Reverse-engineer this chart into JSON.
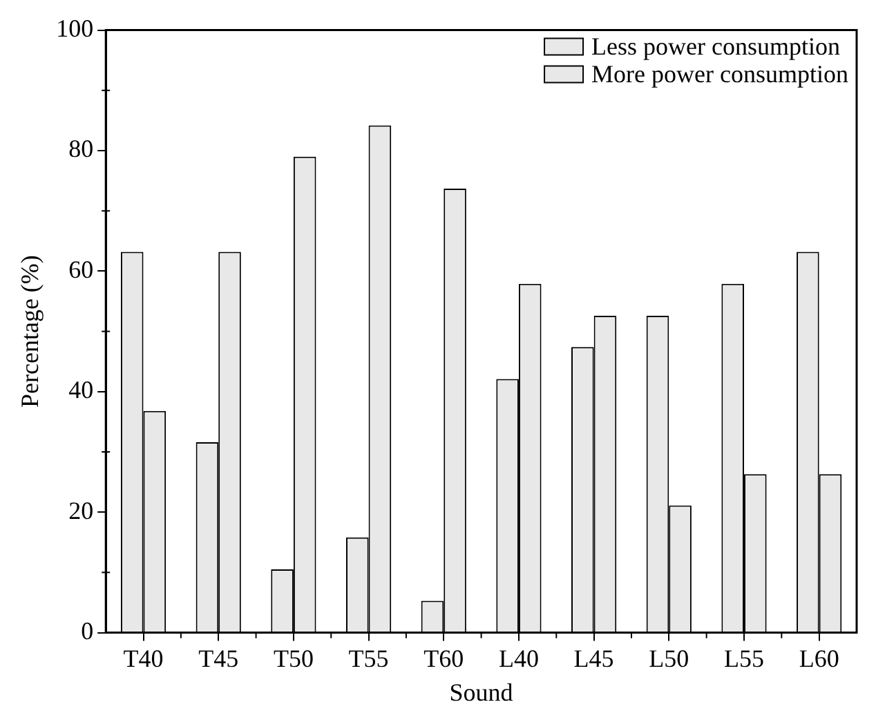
{
  "chart_data": {
    "type": "bar",
    "xlabel": "Sound",
    "ylabel": "Percentage (%)",
    "categories": [
      "T40",
      "T45",
      "T50",
      "T55",
      "T60",
      "L40",
      "L45",
      "L50",
      "L55",
      "L60"
    ],
    "series": [
      {
        "name": "Less power consumption",
        "color": "#e8e8e8",
        "values": [
          63.2,
          31.6,
          10.5,
          15.8,
          5.3,
          42.1,
          47.4,
          52.6,
          57.9,
          63.2
        ]
      },
      {
        "name": "More power consumption",
        "color": "#e8e8e8",
        "values": [
          36.8,
          63.2,
          79.0,
          84.2,
          73.7,
          57.9,
          52.6,
          21.1,
          26.3,
          26.3
        ]
      }
    ],
    "ylim": [
      0,
      100
    ],
    "yticks": [
      0,
      20,
      40,
      60,
      80,
      100
    ],
    "grid": false,
    "legend": "top right"
  }
}
